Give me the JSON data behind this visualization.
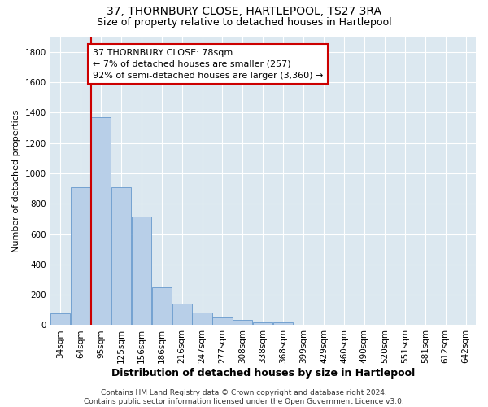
{
  "title": "37, THORNBURY CLOSE, HARTLEPOOL, TS27 3RA",
  "subtitle": "Size of property relative to detached houses in Hartlepool",
  "xlabel": "Distribution of detached houses by size in Hartlepool",
  "ylabel": "Number of detached properties",
  "categories": [
    "34sqm",
    "64sqm",
    "95sqm",
    "125sqm",
    "156sqm",
    "186sqm",
    "216sqm",
    "247sqm",
    "277sqm",
    "308sqm",
    "338sqm",
    "368sqm",
    "399sqm",
    "429sqm",
    "460sqm",
    "490sqm",
    "520sqm",
    "551sqm",
    "581sqm",
    "612sqm",
    "642sqm"
  ],
  "bar_heights": [
    80,
    910,
    1370,
    910,
    715,
    248,
    140,
    85,
    50,
    32,
    18,
    20,
    0,
    0,
    0,
    0,
    0,
    0,
    0,
    0,
    0
  ],
  "bar_color": "#b8cfe8",
  "bar_edge_color": "#6699cc",
  "vline_color": "#cc0000",
  "vline_pos": 1,
  "annotation_text": "37 THORNBURY CLOSE: 78sqm\n← 7% of detached houses are smaller (257)\n92% of semi-detached houses are larger (3,360) →",
  "annotation_box_color": "white",
  "annotation_box_edge": "#cc0000",
  "ylim": [
    0,
    1900
  ],
  "yticks": [
    0,
    200,
    400,
    600,
    800,
    1000,
    1200,
    1400,
    1600,
    1800
  ],
  "bg_color": "#dce8f0",
  "footer": "Contains HM Land Registry data © Crown copyright and database right 2024.\nContains public sector information licensed under the Open Government Licence v3.0.",
  "title_fontsize": 10,
  "subtitle_fontsize": 9,
  "xlabel_fontsize": 9,
  "ylabel_fontsize": 8,
  "tick_fontsize": 7.5,
  "annotation_fontsize": 8,
  "footer_fontsize": 6.5
}
